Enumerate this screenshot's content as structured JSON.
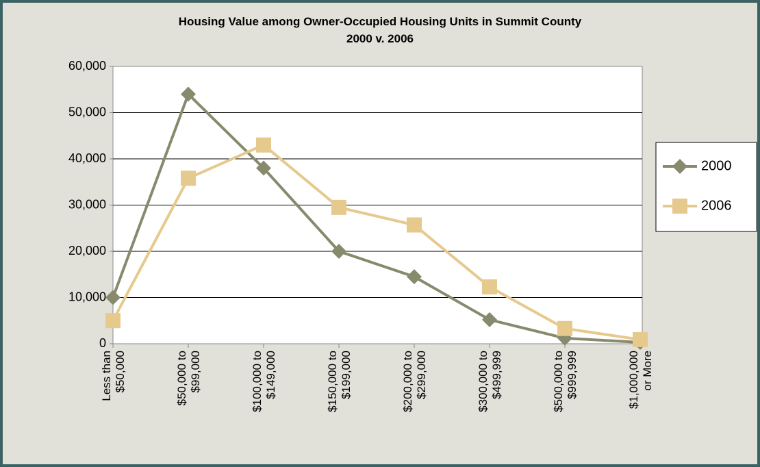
{
  "chart_data": {
    "type": "line",
    "title": [
      "Housing Value among Owner-Occupied Housing Units in Summit County",
      "2000 v. 2006"
    ],
    "categories": [
      [
        "Less than",
        "$50,000"
      ],
      [
        "$50,000 to",
        "$99,000"
      ],
      [
        "$100,000 to",
        "$149,000"
      ],
      [
        "$150,000 to",
        "$199,000"
      ],
      [
        "$200,000 to",
        "$299,000"
      ],
      [
        "$300,000 to",
        "$499,999"
      ],
      [
        "$500,000 to",
        "$999,999"
      ],
      [
        "$1,000,000",
        "or More"
      ]
    ],
    "series": [
      {
        "name": "2000",
        "color": "#878a6c",
        "marker": "diamond",
        "values": [
          10000,
          54000,
          38000,
          20000,
          14500,
          5200,
          1200,
          300
        ]
      },
      {
        "name": "2006",
        "color": "#e6c98d",
        "marker": "square",
        "values": [
          5000,
          35800,
          43000,
          29500,
          25700,
          12300,
          3300,
          900
        ]
      }
    ],
    "ylim": [
      0,
      60000
    ],
    "yticks": [
      0,
      {
        "value": 10000,
        "label": "10,000"
      },
      {
        "value": 20000,
        "label": "20,000"
      },
      {
        "value": 30000,
        "label": "30,000"
      },
      {
        "value": 40000,
        "label": "40,000"
      },
      {
        "value": 50000,
        "label": "50,000"
      },
      {
        "value": 60000,
        "label": "60,000"
      }
    ],
    "grid": true,
    "legend": "right"
  }
}
